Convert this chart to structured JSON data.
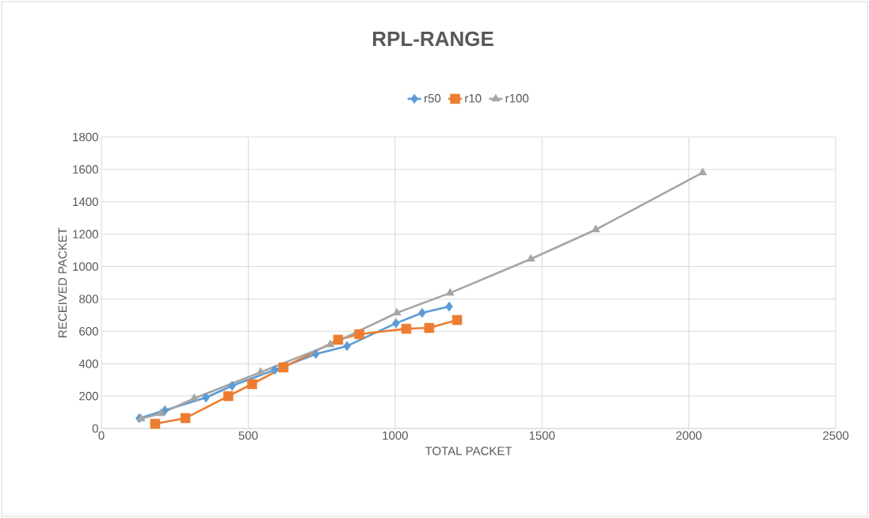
{
  "chart_data": {
    "type": "line",
    "title": "RPL-RANGE",
    "xlabel": "TOTAL PACKET",
    "ylabel": "RECEIVED PACKET",
    "xlim": [
      0,
      2500
    ],
    "xticks": [
      0,
      500,
      1000,
      1500,
      2000,
      2500
    ],
    "ylim": [
      0,
      1800
    ],
    "yticks": [
      0,
      200,
      400,
      600,
      800,
      1000,
      1200,
      1400,
      1600,
      1800
    ],
    "grid": true,
    "legend": "top",
    "line_style": "solid",
    "series": [
      {
        "name": "r50",
        "color": "#5b9bd5",
        "marker": "diamond",
        "x": [
          129,
          216,
          356,
          445,
          590,
          730,
          836,
          1003,
          1092,
          1184
        ],
        "values": [
          63,
          112,
          191,
          264,
          362,
          460,
          509,
          650,
          714,
          753
        ]
      },
      {
        "name": "r10",
        "color": "#ed7d31",
        "marker": "square",
        "x": [
          183,
          286,
          432,
          513,
          620,
          806,
          878,
          1038,
          1116,
          1211
        ],
        "values": [
          29,
          64,
          200,
          274,
          377,
          548,
          582,
          616,
          621,
          670
        ]
      },
      {
        "name": "r100",
        "color": "#a5a5a5",
        "marker": "triangle",
        "x": [
          135,
          203,
          316,
          542,
          779,
          1006,
          1187,
          1462,
          1683,
          2047
        ],
        "values": [
          60,
          93,
          186,
          347,
          518,
          714,
          837,
          1047,
          1228,
          1580
        ]
      }
    ]
  }
}
